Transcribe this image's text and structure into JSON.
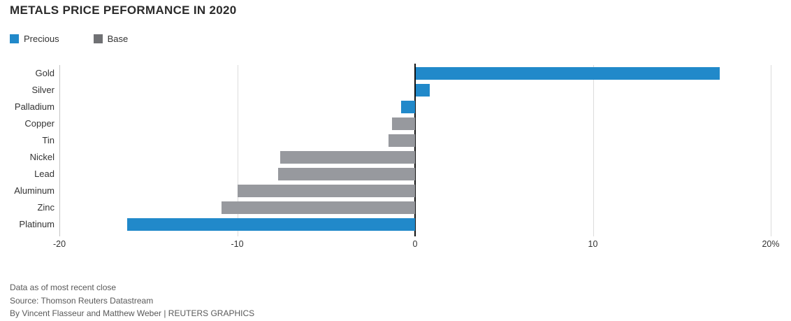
{
  "title": "METALS PRICE PEFORMANCE IN 2020",
  "legend": [
    {
      "label": "Precious",
      "color": "#2189ca"
    },
    {
      "label": "Base",
      "color": "#707174"
    }
  ],
  "chart_data": {
    "type": "bar",
    "orientation": "horizontal",
    "title": "METALS PRICE PEFORMANCE IN 2020",
    "categories": [
      "Gold",
      "Silver",
      "Palladium",
      "Copper",
      "Tin",
      "Nickel",
      "Lead",
      "Aluminum",
      "Zinc",
      "Platinum"
    ],
    "values": [
      17.1,
      0.8,
      -0.8,
      -1.3,
      -1.5,
      -7.6,
      -7.7,
      -10.0,
      -10.9,
      -16.2
    ],
    "groups": [
      "Precious",
      "Precious",
      "Precious",
      "Base",
      "Base",
      "Base",
      "Base",
      "Base",
      "Base",
      "Precious"
    ],
    "group_colors": {
      "Precious": "#2189ca",
      "Base": "#97999e"
    },
    "xlim": [
      -20,
      21
    ],
    "x_ticks": [
      {
        "value": -20,
        "label": "-20"
      },
      {
        "value": -10,
        "label": "-10"
      },
      {
        "value": 0,
        "label": "0"
      },
      {
        "value": 10,
        "label": "10"
      },
      {
        "value": 20,
        "label": "20%"
      }
    ],
    "grid": "vertical-gridlines",
    "legend_position": "top-left",
    "unit": "percent"
  },
  "footer": {
    "note": "Data as of most recent close",
    "source": "Source: Thomson Reuters Datastream",
    "byline": "By Vincent Flasseur and Matthew Weber | REUTERS GRAPHICS"
  }
}
